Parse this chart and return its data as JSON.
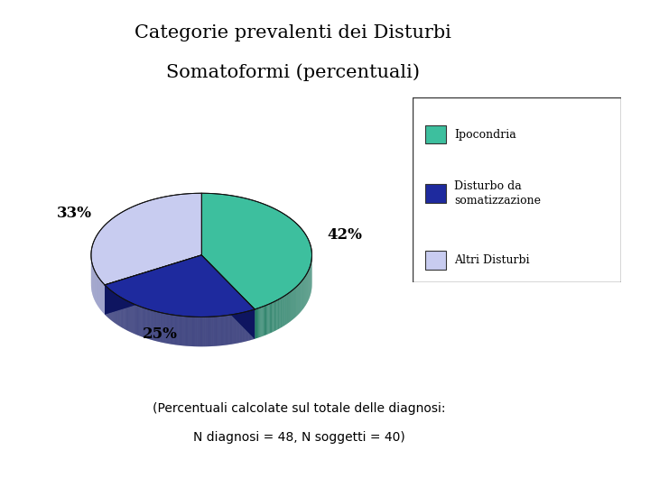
{
  "title_line1": "Categorie prevalenti dei Disturbi",
  "title_line2": "Somatoformi (percentuali)",
  "slices": [
    42,
    25,
    33
  ],
  "pct_labels": [
    "42%",
    "25%",
    "33%"
  ],
  "colors": [
    "#3dbf9e",
    "#1e2a9e",
    "#c8ccf0"
  ],
  "dark_colors": [
    "#1e7a60",
    "#0e1560",
    "#7a80b8"
  ],
  "legend_labels": [
    "Ipocondria",
    "Disturbo da\nsomatizzazione",
    "Altri Disturbi"
  ],
  "legend_colors": [
    "#3dbf9e",
    "#1e2a9e",
    "#c8ccf0"
  ],
  "subtitle": "(Percentuali calcolate sul totale delle diagnosi:",
  "subtitle2": "N diagnosi = 48, N soggetti = 40)",
  "background_color": "#ffffff"
}
